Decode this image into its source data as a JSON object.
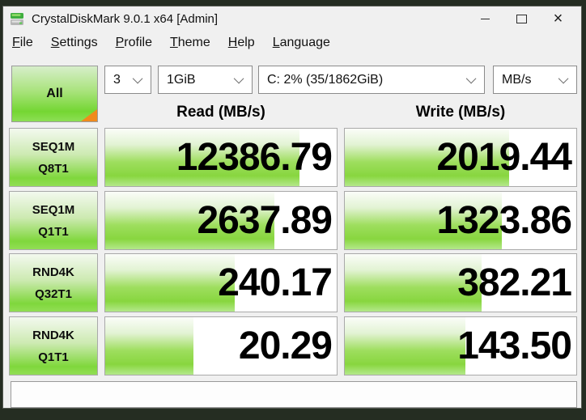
{
  "window": {
    "title": "CrystalDiskMark 9.0.1 x64 [Admin]",
    "controls": {
      "close_glyph": "×"
    }
  },
  "menu": {
    "items": [
      "File",
      "Settings",
      "Profile",
      "Theme",
      "Help",
      "Language"
    ]
  },
  "toolbar": {
    "all_label": "All",
    "test_count": "3",
    "test_size": "1GiB",
    "target_drive": "C: 2% (35/1862GiB)",
    "unit": "MB/s"
  },
  "headers": {
    "read": "Read (MB/s)",
    "write": "Write (MB/s)"
  },
  "results": {
    "rows": [
      {
        "type": "SEQ1M",
        "queue_thread": "Q8T1",
        "read": "12386.79",
        "write": "2019.44",
        "read_fill": 84,
        "write_fill": 71
      },
      {
        "type": "SEQ1M",
        "queue_thread": "Q1T1",
        "read": "2637.89",
        "write": "1323.86",
        "read_fill": 73,
        "write_fill": 68
      },
      {
        "type": "RND4K",
        "queue_thread": "Q32T1",
        "read": "240.17",
        "write": "382.21",
        "read_fill": 56,
        "write_fill": 59
      },
      {
        "type": "RND4K",
        "queue_thread": "Q1T1",
        "read": "20.29",
        "write": "143.50",
        "read_fill": 38,
        "write_fill": 52
      }
    ]
  },
  "status_bar": {
    "text": ""
  },
  "colors": {
    "accent-green": "#76d636",
    "green-light": "#d8efcb",
    "orange": "#f08a1c",
    "desktop": "#252d22",
    "window-bg": "#f0f0f0",
    "cell-border": "#a9a9a9"
  }
}
